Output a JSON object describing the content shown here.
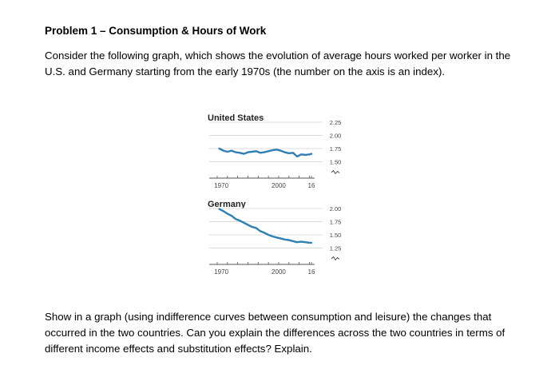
{
  "problem": {
    "title": "Problem 1 – Consumption & Hours of Work",
    "intro": "Consider the following graph, which shows the evolution of average hours worked per worker in the U.S. and Germany starting from the early 1970s (the number on the axis is an index).",
    "question": "Show in a graph (using indifference curves between consumption and leisure) the changes that occurred in the two countries. Can you explain the differences across the two countries in terms of different income effects and substitution effects? Explain."
  },
  "chart_data": [
    {
      "type": "line",
      "title": "United States",
      "x_ticks": [
        "1970",
        "2000",
        "16"
      ],
      "y_ticks": [
        "2.25",
        "2.00",
        "1.75",
        "1.50"
      ],
      "ylim": [
        1.5,
        2.25
      ],
      "xlim": [
        1970,
        2016
      ],
      "color": "#2f7fb5",
      "x": [
        1971,
        1973,
        1975,
        1977,
        1979,
        1981,
        1983,
        1985,
        1987,
        1989,
        1991,
        1993,
        1995,
        1997,
        1999,
        2001,
        2003,
        2005,
        2007,
        2009,
        2011,
        2013,
        2015,
        2016
      ],
      "y": [
        1.75,
        1.71,
        1.69,
        1.71,
        1.68,
        1.67,
        1.65,
        1.68,
        1.69,
        1.7,
        1.67,
        1.68,
        1.7,
        1.72,
        1.73,
        1.71,
        1.68,
        1.66,
        1.67,
        1.6,
        1.64,
        1.63,
        1.64,
        1.65
      ]
    },
    {
      "type": "line",
      "title": "Germany",
      "x_ticks": [
        "1970",
        "2000",
        "16"
      ],
      "y_ticks": [
        "2.00",
        "1.75",
        "1.50",
        "1.25"
      ],
      "ylim": [
        1.25,
        2.05
      ],
      "xlim": [
        1970,
        2016
      ],
      "color": "#2f7fb5",
      "x": [
        1971,
        1973,
        1975,
        1977,
        1979,
        1981,
        1983,
        1985,
        1987,
        1989,
        1991,
        1993,
        1995,
        1997,
        1999,
        2001,
        2003,
        2005,
        2007,
        2009,
        2011,
        2013,
        2015,
        2016
      ],
      "y": [
        1.99,
        1.95,
        1.9,
        1.86,
        1.8,
        1.77,
        1.73,
        1.69,
        1.65,
        1.63,
        1.57,
        1.54,
        1.5,
        1.47,
        1.45,
        1.43,
        1.41,
        1.4,
        1.38,
        1.36,
        1.37,
        1.36,
        1.35,
        1.35
      ]
    }
  ]
}
